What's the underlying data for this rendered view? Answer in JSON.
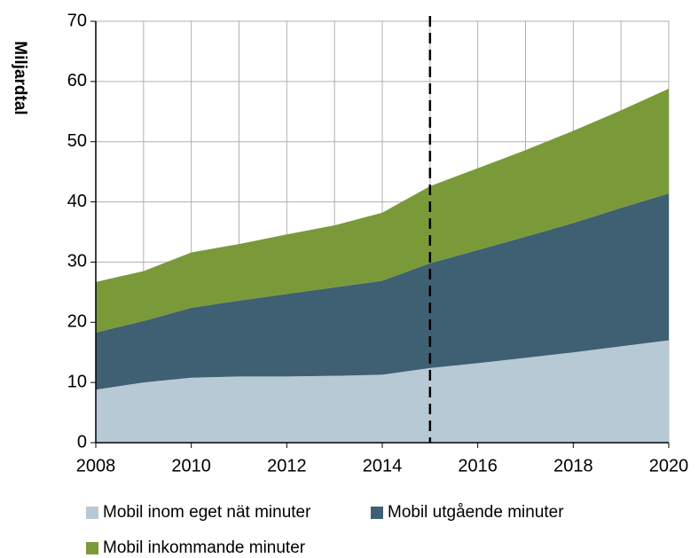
{
  "chart_data": {
    "type": "stacked_area",
    "y_label": "Miljardtal",
    "x": [
      2008,
      2009,
      2010,
      2011,
      2012,
      2013,
      2014,
      2015,
      2016,
      2017,
      2018,
      2019,
      2020
    ],
    "series": [
      {
        "name": "Mobil inom eget nät minuter",
        "color": "#b8c9d6",
        "values": [
          8.8,
          10,
          10.8,
          11,
          11,
          11.1,
          11.3,
          12.4,
          13.2,
          14.1,
          15,
          16,
          17
        ]
      },
      {
        "name": "Mobil utgående minuter",
        "color": "#3f5f73",
        "values": [
          9.5,
          10.2,
          11.6,
          12.6,
          13.7,
          14.7,
          15.6,
          17.4,
          18.8,
          20.1,
          21.5,
          23,
          24.4
        ]
      },
      {
        "name": "Mobil inkommande minuter",
        "color": "#7a9a3a",
        "values": [
          8.4,
          8.3,
          9.2,
          9.4,
          9.9,
          10.3,
          11.3,
          12.8,
          13.6,
          14.4,
          15.3,
          16.2,
          17.4
        ]
      }
    ],
    "xlim": [
      2008,
      2020
    ],
    "xticks": [
      2008,
      2010,
      2012,
      2014,
      2016,
      2018,
      2020
    ],
    "ylim": [
      0,
      70
    ],
    "yticks": [
      0,
      10,
      20,
      30,
      40,
      50,
      60,
      70
    ],
    "grid": true,
    "vline_x": 2015
  }
}
